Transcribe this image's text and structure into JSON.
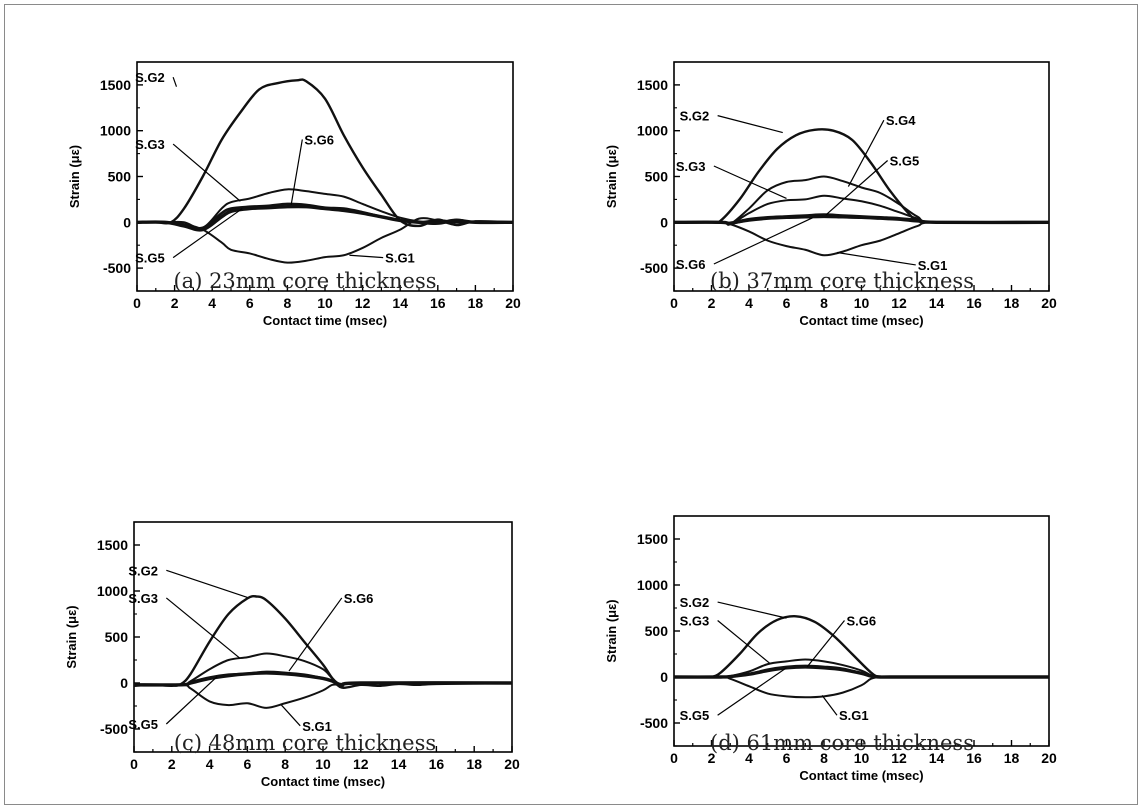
{
  "chart_data": [
    {
      "type": "line",
      "caption": "(a) 23mm core thickness",
      "xlabel": "Contact time (msec)",
      "ylabel": "Strain (με)",
      "xlim": [
        0,
        20
      ],
      "ylim": [
        -750,
        1750
      ],
      "xticks": [
        "0",
        "2",
        "4",
        "6",
        "8",
        "10",
        "12",
        "14",
        "16",
        "18",
        "20"
      ],
      "yticks": [
        "-500",
        "0",
        "500",
        "1000",
        "1500"
      ],
      "series": [
        {
          "name": "S.G2",
          "x": [
            0,
            1,
            1.8,
            2.5,
            3.5,
            4.5,
            5.5,
            6.5,
            7.5,
            8.5,
            9,
            10,
            11,
            12,
            13,
            14,
            15,
            16,
            17,
            18,
            20
          ],
          "y": [
            0,
            0,
            0,
            150,
            500,
            900,
            1200,
            1450,
            1520,
            1550,
            1540,
            1350,
            950,
            600,
            300,
            20,
            -40,
            30,
            -30,
            10,
            0
          ]
        },
        {
          "name": "S.G3",
          "x": [
            0,
            1.5,
            2.5,
            3.5,
            4.5,
            5,
            6,
            7,
            8,
            9,
            10,
            11,
            12,
            13,
            14,
            15,
            16,
            17,
            18,
            20
          ],
          "y": [
            0,
            0,
            0,
            -60,
            150,
            220,
            260,
            320,
            360,
            340,
            310,
            280,
            200,
            120,
            50,
            10,
            0,
            30,
            0,
            0
          ]
        },
        {
          "name": "S.G6",
          "x": [
            0,
            1.5,
            2.5,
            3.5,
            4.5,
            5,
            6,
            7,
            8,
            9,
            10,
            11,
            12,
            13,
            14,
            15,
            16,
            17,
            18,
            20
          ],
          "y": [
            0,
            0,
            -30,
            -60,
            100,
            150,
            170,
            180,
            200,
            190,
            160,
            150,
            110,
            60,
            20,
            0,
            20,
            0,
            0,
            0
          ]
        },
        {
          "name": "S.G5",
          "x": [
            0,
            1.5,
            2.5,
            3.5,
            4.5,
            5,
            6,
            7,
            8,
            9,
            10,
            11,
            12,
            13,
            14,
            15,
            16,
            17,
            18,
            20
          ],
          "y": [
            0,
            0,
            -40,
            -80,
            60,
            120,
            150,
            160,
            170,
            170,
            150,
            130,
            100,
            60,
            20,
            0,
            -10,
            20,
            0,
            0
          ]
        },
        {
          "name": "S.G1",
          "x": [
            0,
            1.5,
            2.5,
            3.5,
            4.5,
            5,
            6,
            7,
            8,
            9,
            10,
            11,
            12,
            13,
            14,
            15,
            16,
            17,
            18,
            20
          ],
          "y": [
            0,
            0,
            -20,
            -80,
            -220,
            -300,
            -340,
            -400,
            -440,
            -420,
            -380,
            -360,
            -280,
            -170,
            -80,
            40,
            20,
            -30,
            10,
            0
          ]
        }
      ],
      "annotations": [
        "S.G2",
        "S.G3",
        "S.G6",
        "S.G5",
        "S.G1"
      ]
    },
    {
      "type": "line",
      "caption": "(b) 37mm core thickness",
      "xlabel": "Contact time (msec)",
      "ylabel": "Strain (με)",
      "xlim": [
        0,
        20
      ],
      "ylim": [
        -750,
        1750
      ],
      "xticks": [
        "0",
        "2",
        "4",
        "6",
        "8",
        "10",
        "12",
        "14",
        "16",
        "18",
        "20"
      ],
      "yticks": [
        "-500",
        "0",
        "500",
        "1000",
        "1500"
      ],
      "series": [
        {
          "name": "S.G2",
          "x": [
            0,
            2,
            2.5,
            3.5,
            4.5,
            5.5,
            6.5,
            7.5,
            8.5,
            9.5,
            10.5,
            11.5,
            12.5,
            13,
            14,
            20
          ],
          "y": [
            0,
            0,
            20,
            250,
            550,
            800,
            950,
            1010,
            1000,
            900,
            650,
            350,
            100,
            20,
            0,
            0
          ]
        },
        {
          "name": "S.G4",
          "x": [
            0,
            2.5,
            3,
            4,
            5,
            6,
            7,
            8,
            9,
            10,
            11,
            12,
            13,
            14,
            20
          ],
          "y": [
            0,
            0,
            -20,
            150,
            350,
            440,
            460,
            500,
            450,
            380,
            320,
            200,
            60,
            0,
            0
          ]
        },
        {
          "name": "S.G3",
          "x": [
            0,
            2.5,
            3,
            4,
            5,
            6,
            7,
            8,
            9,
            10,
            11,
            12,
            13,
            14,
            20
          ],
          "y": [
            0,
            0,
            -20,
            100,
            200,
            240,
            250,
            290,
            260,
            230,
            180,
            110,
            40,
            0,
            0
          ]
        },
        {
          "name": "S.G5",
          "x": [
            0,
            2.5,
            3,
            4,
            5,
            6,
            7,
            8,
            9,
            10,
            11,
            12,
            13,
            14,
            20
          ],
          "y": [
            0,
            0,
            -10,
            30,
            50,
            60,
            70,
            80,
            70,
            60,
            50,
            40,
            20,
            0,
            0
          ]
        },
        {
          "name": "S.G6",
          "x": [
            0,
            2.5,
            3,
            4,
            5,
            6,
            7,
            8,
            9,
            10,
            11,
            12,
            13,
            14,
            20
          ],
          "y": [
            0,
            0,
            -10,
            20,
            40,
            50,
            55,
            60,
            55,
            50,
            40,
            30,
            10,
            0,
            0
          ]
        },
        {
          "name": "S.G1",
          "x": [
            0,
            2.5,
            3,
            4,
            5,
            6,
            7,
            8,
            9,
            10,
            11,
            12,
            13,
            14,
            20
          ],
          "y": [
            0,
            0,
            -20,
            -100,
            -200,
            -260,
            -300,
            -360,
            -320,
            -250,
            -200,
            -120,
            -40,
            0,
            0
          ]
        }
      ],
      "annotations": [
        "S.G2",
        "S.G4",
        "S.G3",
        "S.G5",
        "S.G6",
        "S.G1"
      ]
    },
    {
      "type": "line",
      "caption": "(c) 48mm core thickness",
      "xlabel": "Contact time (msec)",
      "ylabel": "Strain (με)",
      "xlim": [
        0,
        20
      ],
      "ylim": [
        -750,
        1750
      ],
      "xticks": [
        "0",
        "2",
        "4",
        "6",
        "8",
        "10",
        "12",
        "14",
        "16",
        "18",
        "20"
      ],
      "yticks": [
        "-500",
        "0",
        "500",
        "1000",
        "1500"
      ],
      "series": [
        {
          "name": "S.G2",
          "x": [
            0,
            1,
            2,
            2.5,
            3,
            4,
            5,
            6,
            6.5,
            7,
            8,
            9,
            10,
            10.5,
            11,
            12,
            13,
            14,
            15,
            16,
            20
          ],
          "y": [
            -30,
            -20,
            -30,
            -10,
            100,
            450,
            750,
            920,
            940,
            900,
            700,
            450,
            200,
            50,
            -50,
            -20,
            -30,
            -10,
            -20,
            -10,
            0
          ]
        },
        {
          "name": "S.G3",
          "x": [
            0,
            2.5,
            3,
            4,
            5,
            6,
            7,
            8,
            9,
            10,
            10.5,
            11,
            12,
            20
          ],
          "y": [
            -20,
            -20,
            20,
            150,
            250,
            280,
            320,
            290,
            240,
            150,
            50,
            -20,
            0,
            0
          ]
        },
        {
          "name": "S.G6",
          "x": [
            0,
            2.5,
            3,
            4,
            5,
            6,
            7,
            8,
            9,
            10,
            10.5,
            11,
            12,
            20
          ],
          "y": [
            -20,
            -20,
            10,
            60,
            90,
            100,
            120,
            110,
            90,
            50,
            20,
            -20,
            0,
            0
          ]
        },
        {
          "name": "S.G5",
          "x": [
            0,
            2.5,
            3,
            4,
            5,
            6,
            7,
            8,
            9,
            10,
            10.5,
            11,
            12,
            20
          ],
          "y": [
            -20,
            -20,
            0,
            50,
            80,
            100,
            110,
            100,
            80,
            50,
            20,
            -20,
            0,
            0
          ]
        },
        {
          "name": "S.G1",
          "x": [
            0,
            2.5,
            3,
            4,
            5,
            6,
            7,
            8,
            9,
            10,
            10.5,
            11,
            12,
            20
          ],
          "y": [
            -20,
            -20,
            -60,
            -200,
            -240,
            -220,
            -270,
            -220,
            -160,
            -80,
            -20,
            -20,
            0,
            0
          ]
        }
      ],
      "annotations": [
        "S.G2",
        "S.G3",
        "S.G6",
        "S.G5",
        "S.G1"
      ]
    },
    {
      "type": "line",
      "caption": "(d) 61mm core thickness",
      "xlabel": "Contact time (msec)",
      "ylabel": "Strain (με)",
      "xlim": [
        0,
        20
      ],
      "ylim": [
        -750,
        1750
      ],
      "xticks": [
        "0",
        "2",
        "4",
        "6",
        "8",
        "10",
        "12",
        "14",
        "16",
        "18",
        "20"
      ],
      "yticks": [
        "-500",
        "0",
        "500",
        "1000",
        "1500"
      ],
      "series": [
        {
          "name": "S.G2",
          "x": [
            0,
            1.5,
            2,
            2.5,
            3.5,
            4.5,
            5.5,
            6.5,
            7.5,
            8.5,
            9.5,
            10.5,
            11,
            12,
            20
          ],
          "y": [
            0,
            0,
            0,
            50,
            250,
            480,
            620,
            660,
            600,
            450,
            250,
            50,
            0,
            0,
            0
          ]
        },
        {
          "name": "S.G3",
          "x": [
            0,
            2.5,
            3,
            4,
            5,
            6,
            7,
            8,
            9,
            10,
            10.5,
            11,
            12,
            20
          ],
          "y": [
            0,
            0,
            10,
            60,
            140,
            170,
            190,
            170,
            130,
            70,
            20,
            0,
            0,
            0
          ]
        },
        {
          "name": "S.G6",
          "x": [
            0,
            2.5,
            3,
            4,
            5,
            6,
            7,
            8,
            9,
            10,
            10.5,
            11,
            12,
            20
          ],
          "y": [
            0,
            0,
            5,
            30,
            80,
            110,
            120,
            110,
            90,
            40,
            10,
            0,
            0,
            0
          ]
        },
        {
          "name": "S.G5",
          "x": [
            0,
            2.5,
            3,
            4,
            5,
            6,
            7,
            8,
            9,
            10,
            10.5,
            11,
            12,
            20
          ],
          "y": [
            0,
            0,
            5,
            30,
            70,
            100,
            110,
            100,
            80,
            40,
            10,
            0,
            0,
            0
          ]
        },
        {
          "name": "S.G1",
          "x": [
            0,
            2.5,
            3,
            4,
            5,
            6,
            7,
            8,
            9,
            10,
            10.5,
            11,
            12,
            20
          ],
          "y": [
            0,
            0,
            -20,
            -100,
            -180,
            -210,
            -220,
            -210,
            -170,
            -90,
            -20,
            0,
            0,
            0
          ]
        }
      ],
      "annotations": [
        "S.G2",
        "S.G3",
        "S.G6",
        "S.G5",
        "S.G1"
      ]
    }
  ]
}
